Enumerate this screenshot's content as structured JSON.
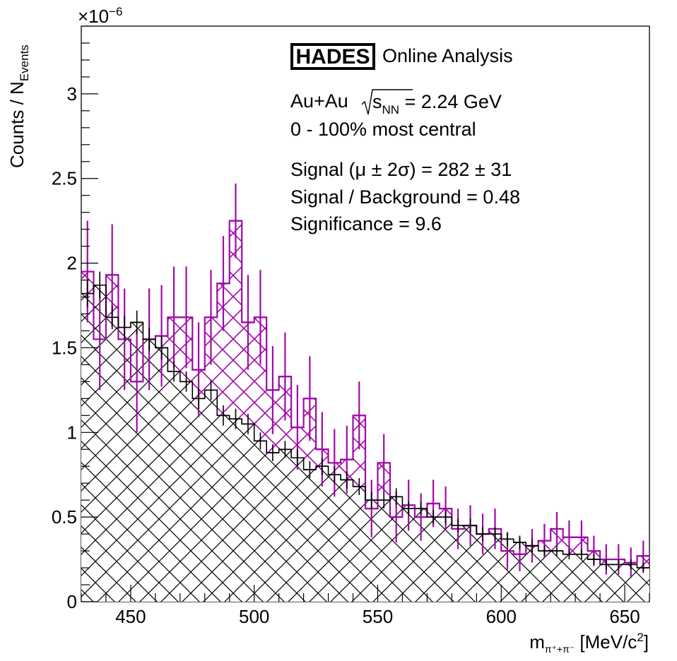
{
  "chart_data": {
    "type": "histogram",
    "title": "",
    "xlabel": {
      "main": "m",
      "sub": "π⁺+π⁻",
      "unit": " [MeV/c",
      "sup": "2",
      "close": "]"
    },
    "ylabel": {
      "main": "Counts / N",
      "sub": "Events"
    },
    "exponent": {
      "base": "×10",
      "power": "−6"
    },
    "xlim": [
      430,
      660
    ],
    "ylim": [
      0,
      3.4
    ],
    "xticks": [
      450,
      500,
      550,
      600,
      650
    ],
    "xtick_labels": [
      "450",
      "500",
      "550",
      "600",
      "650"
    ],
    "yticks": [
      0,
      0.5,
      1,
      1.5,
      2,
      2.5,
      3
    ],
    "ytick_labels": [
      "0",
      "0.5",
      "1",
      "1.5",
      "2",
      "2.5",
      "3"
    ],
    "bin_width": 5,
    "bin_centers": [
      432.5,
      437.5,
      442.5,
      447.5,
      452.5,
      457.5,
      462.5,
      467.5,
      472.5,
      477.5,
      482.5,
      487.5,
      492.5,
      497.5,
      502.5,
      507.5,
      512.5,
      517.5,
      522.5,
      527.5,
      532.5,
      537.5,
      542.5,
      547.5,
      552.5,
      557.5,
      562.5,
      567.5,
      572.5,
      577.5,
      582.5,
      587.5,
      592.5,
      597.5,
      602.5,
      607.5,
      612.5,
      617.5,
      622.5,
      627.5,
      632.5,
      637.5,
      642.5,
      647.5,
      652.5,
      657.5
    ],
    "series": [
      {
        "color": "#000000",
        "style": "background-hatched",
        "values": [
          1.82,
          1.87,
          1.68,
          1.62,
          1.65,
          1.55,
          1.5,
          1.36,
          1.3,
          1.2,
          1.25,
          1.1,
          1.08,
          1.05,
          0.95,
          0.88,
          0.9,
          0.85,
          0.78,
          0.8,
          0.75,
          0.72,
          0.68,
          0.6,
          0.6,
          0.62,
          0.55,
          0.55,
          0.5,
          0.5,
          0.45,
          0.45,
          0.4,
          0.4,
          0.37,
          0.35,
          0.33,
          0.3,
          0.3,
          0.28,
          0.28,
          0.25,
          0.22,
          0.22,
          0.22,
          0.2
        ],
        "errors": [
          0.08,
          0.08,
          0.07,
          0.07,
          0.07,
          0.07,
          0.07,
          0.06,
          0.06,
          0.06,
          0.06,
          0.06,
          0.06,
          0.06,
          0.05,
          0.05,
          0.05,
          0.05,
          0.05,
          0.05,
          0.05,
          0.05,
          0.05,
          0.05,
          0.05,
          0.05,
          0.04,
          0.04,
          0.04,
          0.04,
          0.04,
          0.04,
          0.04,
          0.04,
          0.04,
          0.04,
          0.04,
          0.03,
          0.03,
          0.03,
          0.03,
          0.03,
          0.03,
          0.03,
          0.03,
          0.03
        ]
      },
      {
        "color": "#a00aa8",
        "style": "signal-plus-background-hatched",
        "values": [
          1.95,
          1.55,
          1.93,
          1.55,
          1.3,
          1.55,
          1.57,
          1.68,
          1.68,
          1.37,
          1.68,
          1.88,
          2.25,
          1.65,
          1.68,
          1.25,
          1.33,
          1.03,
          1.2,
          0.9,
          0.82,
          0.84,
          1.1,
          0.55,
          0.82,
          0.5,
          0.57,
          0.5,
          0.58,
          0.55,
          0.43,
          0.45,
          0.4,
          0.43,
          0.3,
          0.28,
          0.33,
          0.36,
          0.43,
          0.38,
          0.38,
          0.3,
          0.25,
          0.25,
          0.23,
          0.27
        ],
        "errors": [
          0.3,
          0.3,
          0.3,
          0.3,
          0.3,
          0.3,
          0.3,
          0.3,
          0.3,
          0.28,
          0.28,
          0.28,
          0.22,
          0.28,
          0.28,
          0.26,
          0.26,
          0.25,
          0.25,
          0.22,
          0.2,
          0.2,
          0.2,
          0.17,
          0.17,
          0.15,
          0.15,
          0.14,
          0.14,
          0.13,
          0.12,
          0.12,
          0.12,
          0.12,
          0.11,
          0.1,
          0.1,
          0.1,
          0.1,
          0.1,
          0.1,
          0.09,
          0.09,
          0.09,
          0.09,
          0.09
        ]
      }
    ],
    "legend": "none"
  },
  "annotations": {
    "logo": "HADES",
    "online": "Online Analysis",
    "system": "Au+Au",
    "sqrt_s": "s",
    "sqrt_sub": "NN",
    "energy": " = 2.24 GeV",
    "centrality": "0 - 100% most central",
    "signal": "Signal (μ ± 2σ) = 282 ± 31",
    "sb": "Signal / Background = 0.48",
    "significance": "Significance = 9.6"
  }
}
